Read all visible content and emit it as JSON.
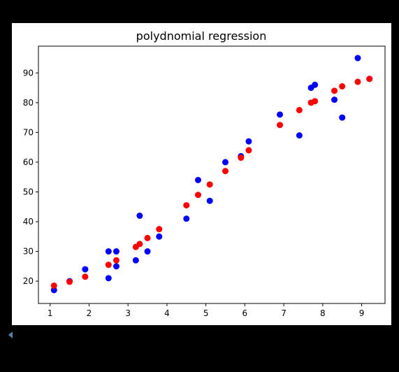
{
  "chart_data": {
    "type": "scatter",
    "title": "polydnomial regression",
    "xlabel": "",
    "ylabel": "",
    "xlim": [
      0.7,
      9.6
    ],
    "ylim": [
      12.5,
      99
    ],
    "xticks": [
      1,
      2,
      3,
      4,
      5,
      6,
      7,
      8,
      9
    ],
    "yticks": [
      20,
      30,
      40,
      50,
      60,
      70,
      80,
      90
    ],
    "grid": false,
    "series": [
      {
        "color": "#0000ff",
        "points": [
          [
            1.1,
            17
          ],
          [
            1.5,
            20
          ],
          [
            1.9,
            24
          ],
          [
            2.5,
            21
          ],
          [
            2.5,
            30
          ],
          [
            2.7,
            30
          ],
          [
            2.7,
            25
          ],
          [
            3.2,
            27
          ],
          [
            3.3,
            42
          ],
          [
            3.5,
            30
          ],
          [
            3.8,
            35
          ],
          [
            4.5,
            41
          ],
          [
            4.8,
            54
          ],
          [
            5.1,
            47
          ],
          [
            5.5,
            60
          ],
          [
            5.9,
            62
          ],
          [
            6.1,
            67
          ],
          [
            6.9,
            76
          ],
          [
            7.4,
            69
          ],
          [
            7.7,
            85
          ],
          [
            7.8,
            86
          ],
          [
            8.3,
            81
          ],
          [
            8.5,
            75
          ],
          [
            8.9,
            95
          ],
          [
            9.2,
            88
          ]
        ]
      },
      {
        "color": "#ff0000",
        "points": [
          [
            1.1,
            18.5
          ],
          [
            1.5,
            19.8
          ],
          [
            1.9,
            21.5
          ],
          [
            2.5,
            25.5
          ],
          [
            2.7,
            27
          ],
          [
            3.2,
            31.5
          ],
          [
            3.3,
            32.5
          ],
          [
            3.5,
            34.5
          ],
          [
            3.8,
            37.5
          ],
          [
            4.5,
            45.5
          ],
          [
            4.8,
            49
          ],
          [
            5.1,
            52.5
          ],
          [
            5.5,
            57
          ],
          [
            5.9,
            61.5
          ],
          [
            6.1,
            64
          ],
          [
            6.9,
            72.5
          ],
          [
            7.4,
            77.5
          ],
          [
            7.7,
            80
          ],
          [
            7.8,
            80.5
          ],
          [
            8.3,
            84
          ],
          [
            8.5,
            85.5
          ],
          [
            8.9,
            87
          ],
          [
            9.2,
            88
          ]
        ]
      }
    ]
  }
}
